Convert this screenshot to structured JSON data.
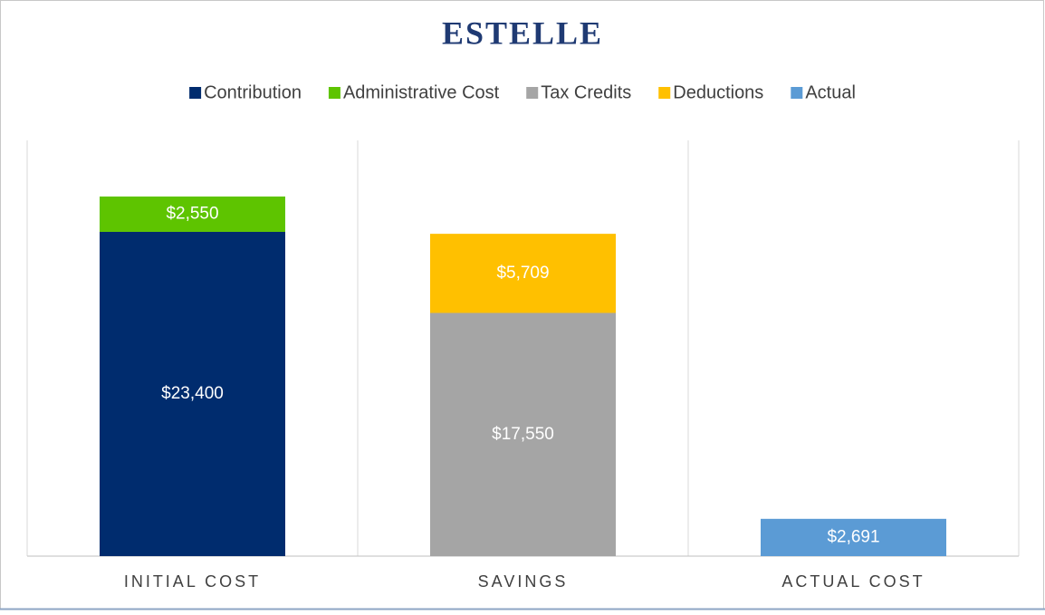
{
  "chart_data": {
    "type": "bar",
    "stacked": true,
    "title": "ESTELLE",
    "categories": [
      "INITIAL COST",
      "SAVINGS",
      "ACTUAL COST"
    ],
    "series": [
      {
        "name": "Contribution",
        "color": "#002c6e",
        "values": [
          23400,
          null,
          null
        ],
        "value_labels": [
          "$23,400",
          null,
          null
        ]
      },
      {
        "name": "Administrative Cost",
        "color": "#5ec400",
        "values": [
          2550,
          null,
          null
        ],
        "value_labels": [
          "$2,550",
          null,
          null
        ]
      },
      {
        "name": "Tax Credits",
        "color": "#a5a5a5",
        "values": [
          null,
          17550,
          null
        ],
        "value_labels": [
          null,
          "$17,550",
          null
        ]
      },
      {
        "name": "Deductions",
        "color": "#ffc000",
        "values": [
          null,
          5709,
          null
        ],
        "value_labels": [
          null,
          "$5,709",
          null
        ]
      },
      {
        "name": "Actual",
        "color": "#5b9bd5",
        "values": [
          null,
          null,
          2691
        ],
        "value_labels": [
          null,
          null,
          "$2,691"
        ]
      }
    ],
    "ylim": [
      0,
      30000
    ],
    "legend": "top"
  }
}
